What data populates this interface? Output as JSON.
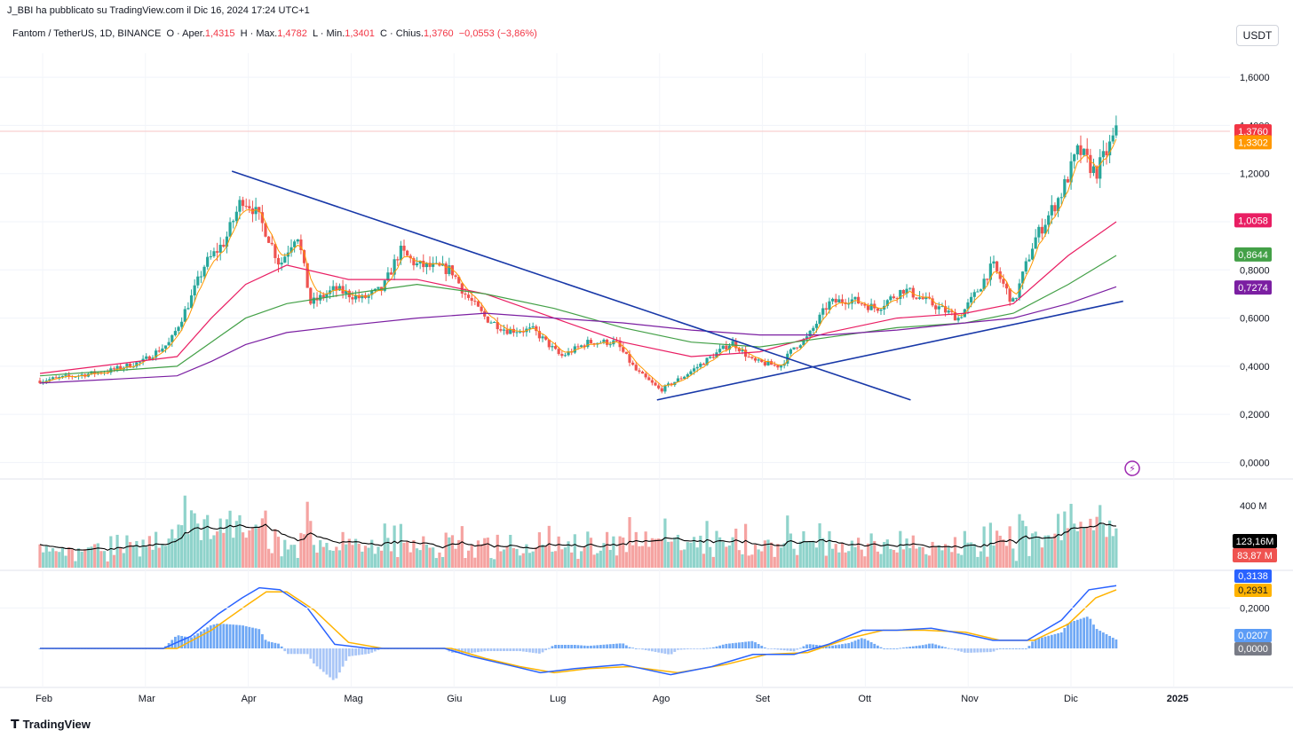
{
  "header": {
    "published": "J_BBI ha pubblicato su TradingView.com il Dic 16, 2024 17:24 UTC+1"
  },
  "symbol": {
    "name": "Fantom / TetherUS, 1D, BINANCE",
    "open_label": "O · Aper.",
    "open": "1,4315",
    "high_label": "H · Max.",
    "high": "1,4782",
    "low_label": "L · Min.",
    "low": "1,3401",
    "close_label": "C · Chius.",
    "close": "1,3760",
    "change": "−0,0553 (−3,86%)"
  },
  "currency": "USDT",
  "footer": {
    "brand": "TradingView"
  },
  "colors": {
    "up": "#26a69a",
    "down": "#ef5350",
    "trend": "#1838a8",
    "ema_fast": "#ff9800",
    "ema_red": "#e91e63",
    "ema_green": "#43a047",
    "ema_purple": "#7b1fa2",
    "macd": "#2962ff",
    "signal": "#ffb300"
  },
  "chart_data": {
    "type": "candlestick",
    "title": "Fantom / TetherUS, 1D, BINANCE",
    "x_labels": [
      "Feb",
      "Mar",
      "Apr",
      "Mag",
      "Giu",
      "Lug",
      "Ago",
      "Set",
      "Ott",
      "Nov",
      "Dic",
      "2025"
    ],
    "price_axis": {
      "ticks": [
        "1,6000",
        "1,4000",
        "1,2000",
        "1,0000",
        "0,8000",
        "0,6000",
        "0,4000",
        "0,2000",
        "0,0000"
      ],
      "ylim": [
        -0.05,
        1.7
      ]
    },
    "price_path": [
      {
        "t": 0,
        "v": 0.34
      },
      {
        "t": 0.5,
        "v": 0.36
      },
      {
        "t": 1,
        "v": 0.38
      },
      {
        "t": 1.5,
        "v": 0.42
      },
      {
        "t": 1.9,
        "v": 0.5
      },
      {
        "t": 2.2,
        "v": 0.68
      },
      {
        "t": 2.4,
        "v": 0.82
      },
      {
        "t": 2.7,
        "v": 0.92
      },
      {
        "t": 2.95,
        "v": 1.1
      },
      {
        "t": 3.1,
        "v": 1.06
      },
      {
        "t": 3.3,
        "v": 0.96
      },
      {
        "t": 3.5,
        "v": 0.82
      },
      {
        "t": 3.75,
        "v": 0.96
      },
      {
        "t": 3.95,
        "v": 0.66
      },
      {
        "t": 4.3,
        "v": 0.72
      },
      {
        "t": 4.7,
        "v": 0.68
      },
      {
        "t": 5,
        "v": 0.72
      },
      {
        "t": 5.25,
        "v": 0.88
      },
      {
        "t": 5.5,
        "v": 0.82
      },
      {
        "t": 6,
        "v": 0.8
      },
      {
        "t": 6.2,
        "v": 0.7
      },
      {
        "t": 6.5,
        "v": 0.6
      },
      {
        "t": 6.8,
        "v": 0.55
      },
      {
        "t": 7.2,
        "v": 0.55
      },
      {
        "t": 7.6,
        "v": 0.44
      },
      {
        "t": 8,
        "v": 0.5
      },
      {
        "t": 8.4,
        "v": 0.5
      },
      {
        "t": 8.7,
        "v": 0.38
      },
      {
        "t": 9.05,
        "v": 0.3
      },
      {
        "t": 9.4,
        "v": 0.36
      },
      {
        "t": 9.8,
        "v": 0.44
      },
      {
        "t": 10.1,
        "v": 0.5
      },
      {
        "t": 10.4,
        "v": 0.42
      },
      {
        "t": 10.8,
        "v": 0.4
      },
      {
        "t": 11,
        "v": 0.48
      },
      {
        "t": 11.2,
        "v": 0.52
      },
      {
        "t": 11.5,
        "v": 0.66
      },
      {
        "t": 11.8,
        "v": 0.68
      },
      {
        "t": 12.2,
        "v": 0.64
      },
      {
        "t": 12.6,
        "v": 0.72
      },
      {
        "t": 13,
        "v": 0.66
      },
      {
        "t": 13.4,
        "v": 0.6
      },
      {
        "t": 13.6,
        "v": 0.68
      },
      {
        "t": 13.9,
        "v": 0.82
      },
      {
        "t": 14.2,
        "v": 0.66
      },
      {
        "t": 14.5,
        "v": 0.92
      },
      {
        "t": 14.9,
        "v": 1.12
      },
      {
        "t": 15.15,
        "v": 1.3
      },
      {
        "t": 15.4,
        "v": 1.2
      },
      {
        "t": 15.7,
        "v": 1.37
      }
    ],
    "moving_averages": [
      {
        "name": "EMA red",
        "last": "1,0058",
        "points": [
          {
            "t": 0,
            "v": 0.37
          },
          {
            "t": 2,
            "v": 0.44
          },
          {
            "t": 2.5,
            "v": 0.6
          },
          {
            "t": 3,
            "v": 0.74
          },
          {
            "t": 3.6,
            "v": 0.82
          },
          {
            "t": 4.5,
            "v": 0.76
          },
          {
            "t": 5.5,
            "v": 0.76
          },
          {
            "t": 6.5,
            "v": 0.7
          },
          {
            "t": 7.5,
            "v": 0.6
          },
          {
            "t": 8.5,
            "v": 0.5
          },
          {
            "t": 9.5,
            "v": 0.44
          },
          {
            "t": 10.5,
            "v": 0.46
          },
          {
            "t": 11.5,
            "v": 0.54
          },
          {
            "t": 12.5,
            "v": 0.6
          },
          {
            "t": 13.5,
            "v": 0.62
          },
          {
            "t": 14.2,
            "v": 0.66
          },
          {
            "t": 15,
            "v": 0.86
          },
          {
            "t": 15.7,
            "v": 1.0
          }
        ]
      },
      {
        "name": "EMA green",
        "last": "0,8644",
        "points": [
          {
            "t": 0,
            "v": 0.36
          },
          {
            "t": 2,
            "v": 0.4
          },
          {
            "t": 2.5,
            "v": 0.5
          },
          {
            "t": 3,
            "v": 0.6
          },
          {
            "t": 3.6,
            "v": 0.66
          },
          {
            "t": 4.5,
            "v": 0.7
          },
          {
            "t": 5.5,
            "v": 0.74
          },
          {
            "t": 6.5,
            "v": 0.7
          },
          {
            "t": 7.5,
            "v": 0.64
          },
          {
            "t": 8.5,
            "v": 0.56
          },
          {
            "t": 9.5,
            "v": 0.5
          },
          {
            "t": 10.5,
            "v": 0.48
          },
          {
            "t": 11.5,
            "v": 0.52
          },
          {
            "t": 12.5,
            "v": 0.56
          },
          {
            "t": 13.5,
            "v": 0.58
          },
          {
            "t": 14.2,
            "v": 0.62
          },
          {
            "t": 15,
            "v": 0.74
          },
          {
            "t": 15.7,
            "v": 0.86
          }
        ]
      },
      {
        "name": "EMA purple",
        "last": "0,7274",
        "points": [
          {
            "t": 0,
            "v": 0.33
          },
          {
            "t": 2,
            "v": 0.36
          },
          {
            "t": 2.5,
            "v": 0.42
          },
          {
            "t": 3,
            "v": 0.49
          },
          {
            "t": 3.6,
            "v": 0.54
          },
          {
            "t": 4.5,
            "v": 0.57
          },
          {
            "t": 5.5,
            "v": 0.6
          },
          {
            "t": 6.5,
            "v": 0.62
          },
          {
            "t": 7.5,
            "v": 0.6
          },
          {
            "t": 8.5,
            "v": 0.58
          },
          {
            "t": 9.5,
            "v": 0.55
          },
          {
            "t": 10.5,
            "v": 0.53
          },
          {
            "t": 11.5,
            "v": 0.53
          },
          {
            "t": 12.5,
            "v": 0.55
          },
          {
            "t": 13.5,
            "v": 0.58
          },
          {
            "t": 14.2,
            "v": 0.6
          },
          {
            "t": 15,
            "v": 0.66
          },
          {
            "t": 15.7,
            "v": 0.73
          }
        ]
      }
    ],
    "trendlines": [
      {
        "name": "downtrend",
        "from": {
          "t": 2.8,
          "v": 1.21
        },
        "to": {
          "t": 12.7,
          "v": 0.26
        }
      },
      {
        "name": "uptrend",
        "from": {
          "t": 9.0,
          "v": 0.26
        },
        "to": {
          "t": 15.8,
          "v": 0.67
        }
      }
    ],
    "price_labels": [
      {
        "label": "1,3760",
        "v": 1.376,
        "color": "#f23645"
      },
      {
        "label": "1,3302",
        "v": 1.33,
        "color": "#ff9800"
      },
      {
        "label": "1,0058",
        "v": 1.006,
        "color": "#e91e63"
      },
      {
        "label": "0,8644",
        "v": 0.864,
        "color": "#43a047"
      },
      {
        "label": "0,7274",
        "v": 0.727,
        "color": "#7b1fa2"
      }
    ],
    "volume": {
      "axis_label": "400 M",
      "labels": [
        {
          "label": "123,16M",
          "color": "#000000"
        },
        {
          "label": "83,87 M",
          "color": "#ef5350"
        }
      ]
    },
    "macd": {
      "axis_label": "0,2000",
      "labels": [
        {
          "label": "0,3138",
          "color": "#2962ff"
        },
        {
          "label": "0,2931",
          "color": "#ffb300"
        },
        {
          "label": "0,0207",
          "color": "#5b9cf6"
        },
        {
          "label": "0,0000",
          "color": "#787b86"
        }
      ],
      "macd_points": [
        {
          "t": 0,
          "v": 0.0
        },
        {
          "t": 1.8,
          "v": 0.0
        },
        {
          "t": 2.2,
          "v": 0.06
        },
        {
          "t": 2.6,
          "v": 0.17
        },
        {
          "t": 2.95,
          "v": 0.25
        },
        {
          "t": 3.2,
          "v": 0.3
        },
        {
          "t": 3.5,
          "v": 0.29
        },
        {
          "t": 3.9,
          "v": 0.2
        },
        {
          "t": 4.3,
          "v": 0.02
        },
        {
          "t": 4.8,
          "v": 0.0
        },
        {
          "t": 5.3,
          "v": 0.0
        },
        {
          "t": 5.9,
          "v": 0.0
        },
        {
          "t": 6.3,
          "v": -0.04
        },
        {
          "t": 6.8,
          "v": -0.08
        },
        {
          "t": 7.3,
          "v": -0.12
        },
        {
          "t": 7.8,
          "v": -0.1
        },
        {
          "t": 8.5,
          "v": -0.08
        },
        {
          "t": 9.2,
          "v": -0.13
        },
        {
          "t": 9.8,
          "v": -0.09
        },
        {
          "t": 10.4,
          "v": -0.03
        },
        {
          "t": 11,
          "v": -0.03
        },
        {
          "t": 11.5,
          "v": 0.02
        },
        {
          "t": 12.0,
          "v": 0.09
        },
        {
          "t": 12.5,
          "v": 0.09
        },
        {
          "t": 13.0,
          "v": 0.1
        },
        {
          "t": 13.5,
          "v": 0.07
        },
        {
          "t": 13.9,
          "v": 0.04
        },
        {
          "t": 14.4,
          "v": 0.04
        },
        {
          "t": 14.9,
          "v": 0.14
        },
        {
          "t": 15.3,
          "v": 0.29
        },
        {
          "t": 15.7,
          "v": 0.31
        }
      ],
      "signal_points": [
        {
          "t": 0,
          "v": 0.0
        },
        {
          "t": 2.0,
          "v": 0.0
        },
        {
          "t": 2.5,
          "v": 0.09
        },
        {
          "t": 3.0,
          "v": 0.21
        },
        {
          "t": 3.3,
          "v": 0.28
        },
        {
          "t": 3.6,
          "v": 0.28
        },
        {
          "t": 4.0,
          "v": 0.19
        },
        {
          "t": 4.5,
          "v": 0.03
        },
        {
          "t": 5.0,
          "v": 0.0
        },
        {
          "t": 6.0,
          "v": 0.0
        },
        {
          "t": 6.5,
          "v": -0.05
        },
        {
          "t": 7.0,
          "v": -0.09
        },
        {
          "t": 7.5,
          "v": -0.12
        },
        {
          "t": 8.0,
          "v": -0.1
        },
        {
          "t": 8.6,
          "v": -0.09
        },
        {
          "t": 9.3,
          "v": -0.12
        },
        {
          "t": 10.0,
          "v": -0.08
        },
        {
          "t": 10.6,
          "v": -0.03
        },
        {
          "t": 11.2,
          "v": -0.02
        },
        {
          "t": 11.8,
          "v": 0.05
        },
        {
          "t": 12.3,
          "v": 0.09
        },
        {
          "t": 12.9,
          "v": 0.09
        },
        {
          "t": 13.5,
          "v": 0.08
        },
        {
          "t": 14.0,
          "v": 0.04
        },
        {
          "t": 14.5,
          "v": 0.04
        },
        {
          "t": 15.0,
          "v": 0.12
        },
        {
          "t": 15.4,
          "v": 0.25
        },
        {
          "t": 15.7,
          "v": 0.29
        }
      ]
    }
  }
}
